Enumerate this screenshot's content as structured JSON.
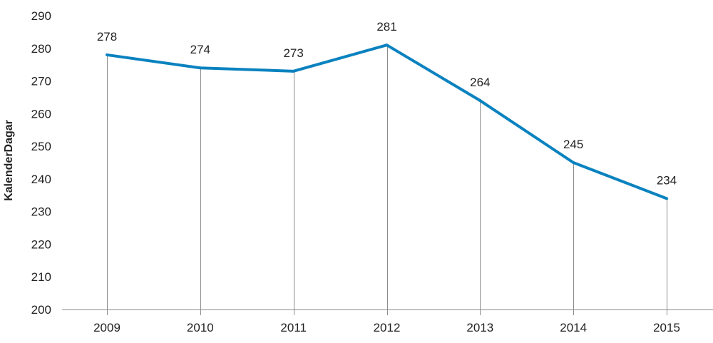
{
  "chart_data": {
    "type": "line",
    "title": "",
    "xlabel": "",
    "ylabel": "KalenderDagar",
    "categories": [
      "2009",
      "2010",
      "2011",
      "2012",
      "2013",
      "2014",
      "2015"
    ],
    "series": [
      {
        "values": [
          278,
          274,
          273,
          281,
          264,
          245,
          234
        ]
      }
    ],
    "data_labels": [
      "278",
      "274",
      "273",
      "281",
      "264",
      "245",
      "234"
    ],
    "ylim": [
      200,
      290
    ],
    "yticks": [
      "200",
      "210",
      "220",
      "230",
      "240",
      "250",
      "260",
      "270",
      "280",
      "290"
    ],
    "grid": false,
    "drop_lines": true,
    "legend": "none",
    "colors": {
      "line": "#0a82bf",
      "drop_line": "#8c8c8c",
      "axis": "#8c8c8c",
      "text": "#222222"
    }
  }
}
